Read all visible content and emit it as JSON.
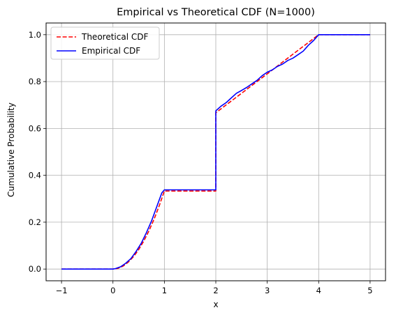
{
  "chart_data": {
    "type": "line",
    "title": "Empirical vs Theoretical CDF (N=1000)",
    "xlabel": "x",
    "ylabel": "Cumulative Probability",
    "xlim": [
      -1.3,
      5.3
    ],
    "ylim": [
      -0.05,
      1.05
    ],
    "xticks": [
      -1,
      0,
      1,
      2,
      3,
      4,
      5
    ],
    "yticks": [
      0.0,
      0.2,
      0.4,
      0.6,
      0.8,
      1.0
    ],
    "xtick_labels": [
      "−1",
      "0",
      "1",
      "2",
      "3",
      "4",
      "5"
    ],
    "ytick_labels": [
      "0.0",
      "0.2",
      "0.4",
      "0.6",
      "0.8",
      "1.0"
    ],
    "grid": true,
    "legend": "top-left",
    "series": [
      {
        "name": "Theoretical CDF",
        "color": "#ff0000",
        "style": "dashed",
        "x": [
          -1,
          0,
          0.1,
          0.2,
          0.3,
          0.4,
          0.5,
          0.6,
          0.7,
          0.8,
          0.9,
          1.0,
          1.0,
          2.0,
          2.0,
          2.5,
          3.0,
          3.5,
          4.0,
          4.0,
          5.0
        ],
        "y": [
          0,
          0,
          0.003,
          0.013,
          0.03,
          0.053,
          0.083,
          0.12,
          0.163,
          0.213,
          0.27,
          0.333,
          0.333,
          0.333,
          0.667,
          0.75,
          0.833,
          0.917,
          1.0,
          1.0,
          1.0
        ]
      },
      {
        "name": "Empirical CDF",
        "color": "#0000ff",
        "style": "solid",
        "x": [
          -1,
          0,
          0.05,
          0.15,
          0.25,
          0.35,
          0.45,
          0.55,
          0.65,
          0.75,
          0.85,
          0.95,
          1.0,
          2.0,
          2.0,
          2.1,
          2.2,
          2.3,
          2.4,
          2.5,
          2.6,
          2.7,
          2.8,
          2.9,
          3.0,
          3.1,
          3.2,
          3.3,
          3.4,
          3.5,
          3.6,
          3.7,
          3.8,
          3.9,
          4.0,
          5.0
        ],
        "y": [
          0,
          0,
          0.002,
          0.01,
          0.025,
          0.045,
          0.075,
          0.11,
          0.155,
          0.205,
          0.265,
          0.325,
          0.338,
          0.338,
          0.675,
          0.695,
          0.71,
          0.73,
          0.75,
          0.762,
          0.775,
          0.79,
          0.805,
          0.825,
          0.84,
          0.85,
          0.865,
          0.875,
          0.89,
          0.9,
          0.915,
          0.93,
          0.955,
          0.975,
          1.0,
          1.0
        ]
      }
    ]
  }
}
